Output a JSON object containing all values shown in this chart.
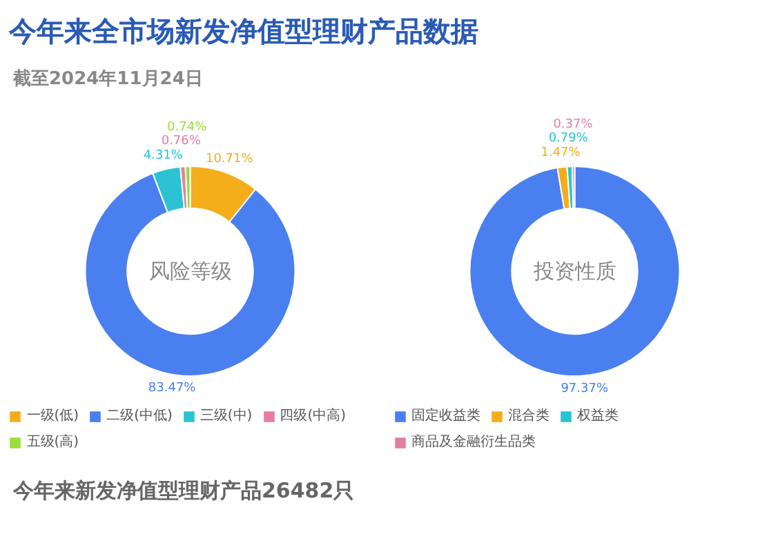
{
  "chart_data": [
    {
      "type": "donut",
      "title": "今年来全市场新发净值型理财产品数据",
      "subtitle": "截至2024年11月24日",
      "annotations": [
        "风险等级",
        "今年来新发净值型理财产品26482只"
      ],
      "categories": [
        "一级(低)",
        "二级(中低)",
        "三级(中)",
        "四级(中高)",
        "五级(高)"
      ],
      "values": [
        10.71,
        83.47,
        4.31,
        0.76,
        0.74
      ],
      "value_labels": [
        "10.71%",
        "83.47%",
        "4.31%",
        "0.76%",
        "0.74%"
      ],
      "colors": [
        "#f5ad1b",
        "#4a7ff0",
        "#2bc3d3",
        "#e27fa3",
        "#9ade3c"
      ],
      "legend": "bottom"
    },
    {
      "type": "donut",
      "annotations": [
        "投资性质"
      ],
      "categories": [
        "固定收益类",
        "混合类",
        "权益类",
        "商品及金融衍生品类"
      ],
      "values": [
        97.37,
        1.47,
        0.79,
        0.37
      ],
      "value_labels": [
        "97.37%",
        "1.47%",
        "0.79%",
        "0.37%"
      ],
      "colors": [
        "#4a7ff0",
        "#f5ad1b",
        "#2bc3d3",
        "#e27fa3"
      ],
      "legend": "bottom"
    }
  ]
}
